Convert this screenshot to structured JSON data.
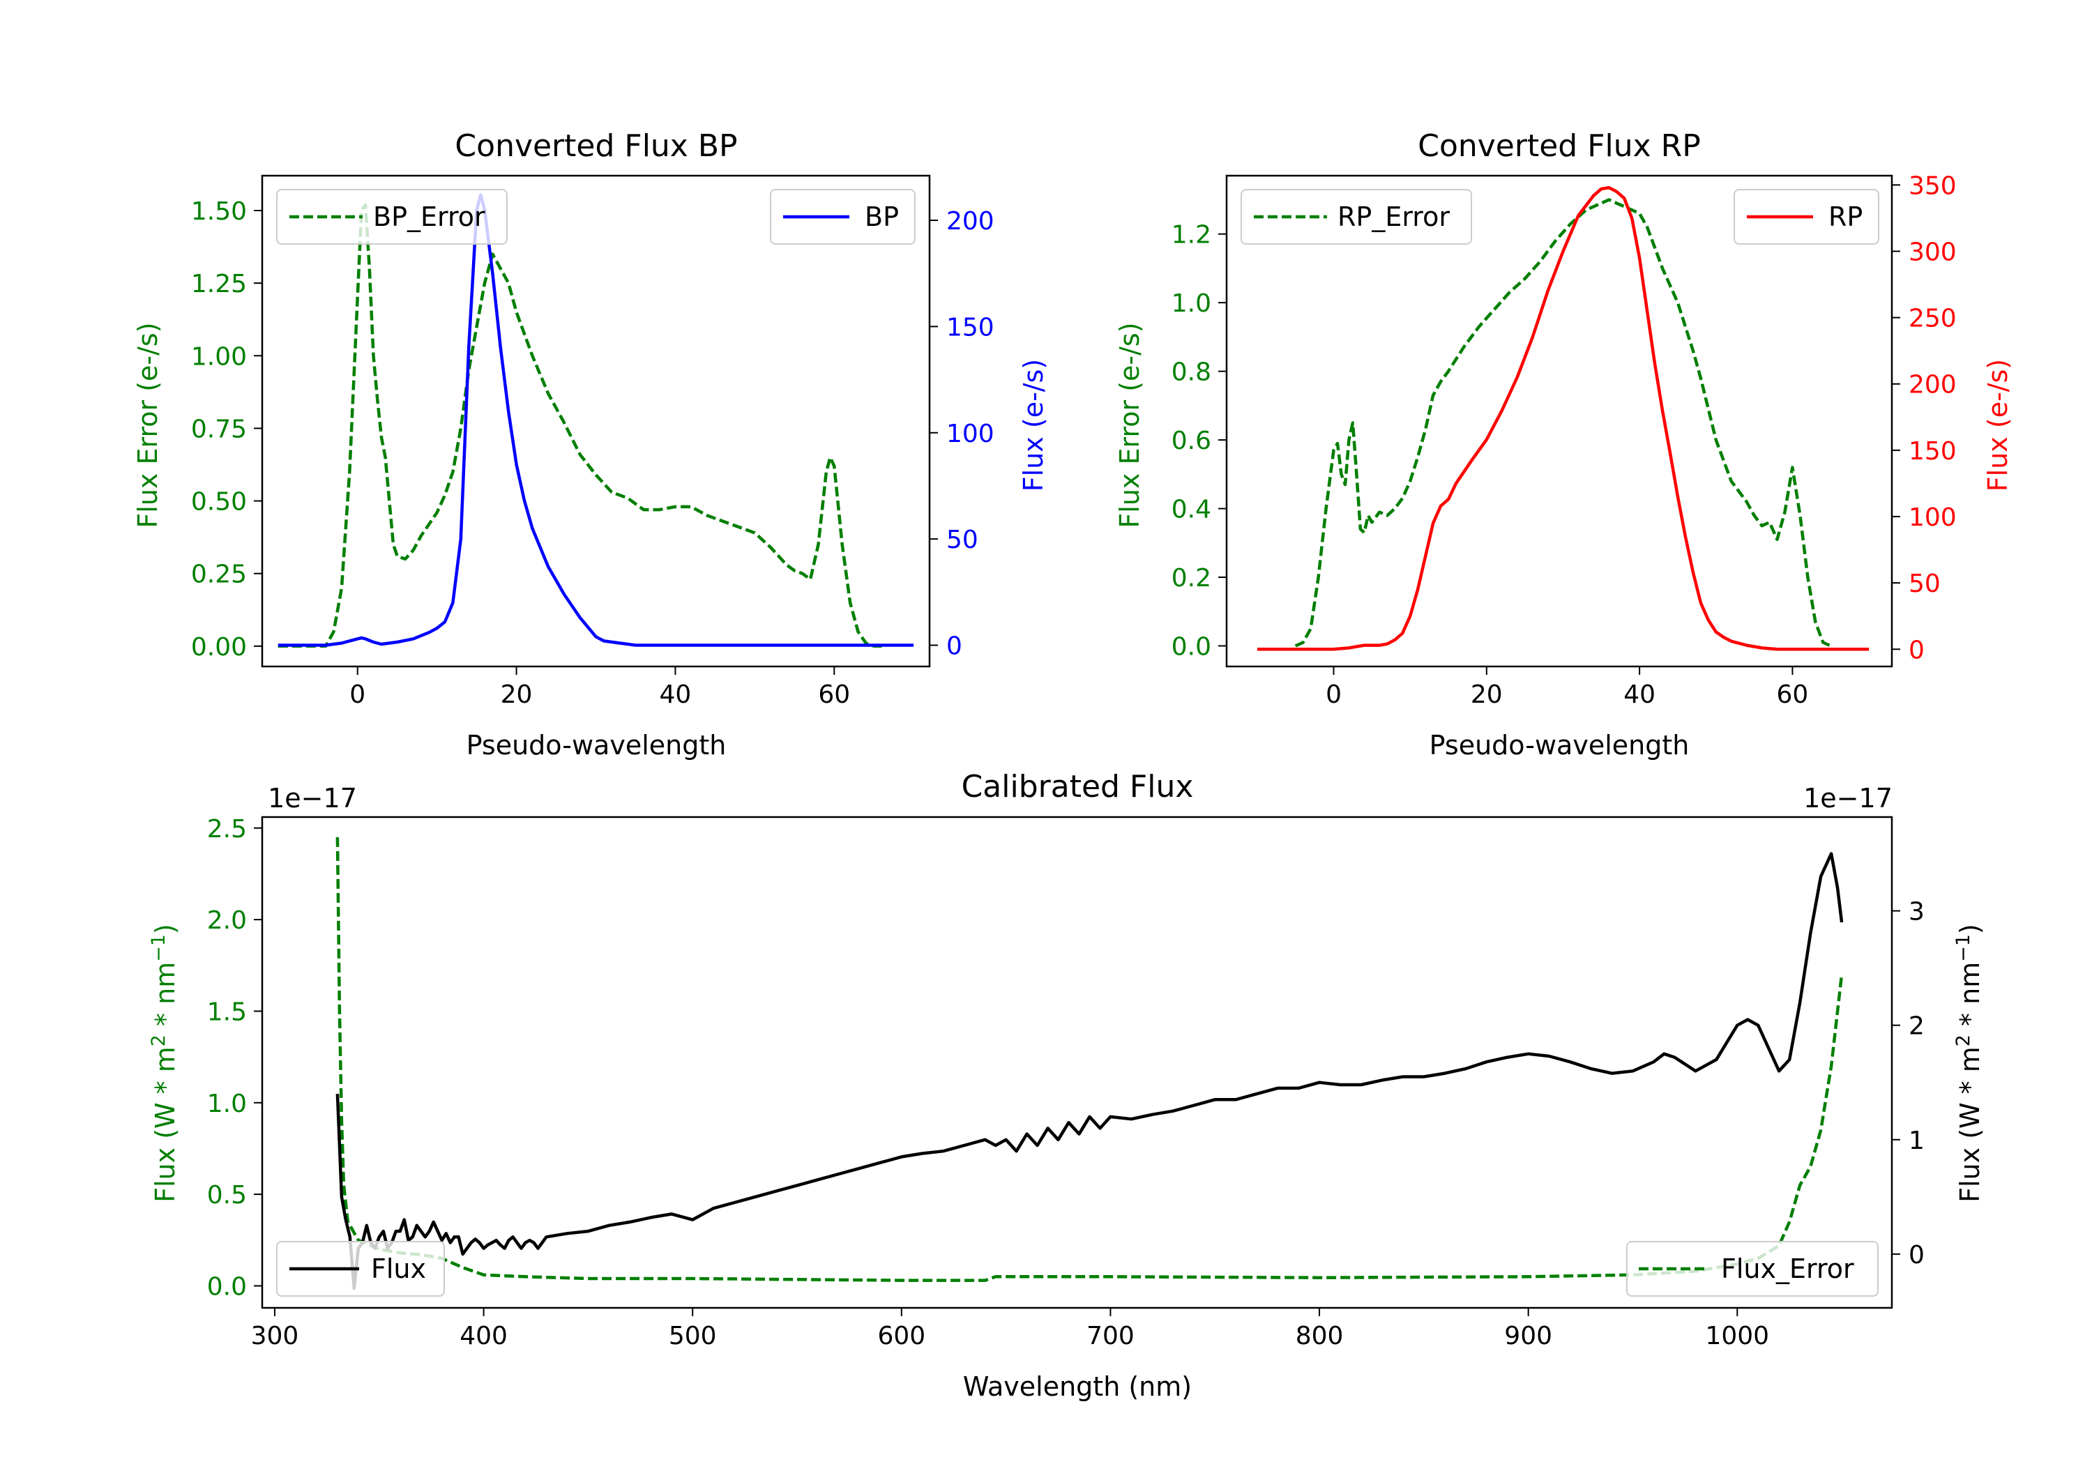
{
  "colors": {
    "bp": "#0000ff",
    "rp": "#ff0000",
    "error": "#007f00",
    "flux": "#000000"
  },
  "chart_data": [
    {
      "id": "bp",
      "type": "line",
      "title": "Converted Flux BP",
      "xlabel": "Pseudo-wavelength",
      "ylabel_left": "Flux Error (e-/s)",
      "ylabel_right": "Flux (e-/s)",
      "xlim": [
        -12,
        72
      ],
      "ylim_left": [
        -0.07,
        1.62
      ],
      "ylim_right": [
        -10,
        221
      ],
      "xticks": [
        0,
        20,
        40,
        60
      ],
      "yticks_left": [
        0,
        0.25,
        0.5,
        0.75,
        1.0,
        1.25,
        1.5
      ],
      "yticks_left_labels": [
        "0.00",
        "0.25",
        "0.50",
        "0.75",
        "1.00",
        "1.25",
        "1.50"
      ],
      "yticks_right": [
        0,
        50,
        100,
        150,
        200
      ],
      "yticks_right_labels": [
        "0",
        "50",
        "100",
        "150",
        "200"
      ],
      "legend_left": "BP_Error",
      "legend_right": "BP",
      "series_error": {
        "name": "BP_Error",
        "x": [
          -10,
          -4,
          -3,
          -2,
          -1,
          0,
          0.5,
          1,
          1.5,
          2,
          2.5,
          3,
          3.5,
          4,
          4.5,
          5,
          6,
          7,
          8,
          9,
          10,
          11,
          12,
          13,
          14,
          15,
          16,
          17,
          18,
          19,
          20,
          22,
          24,
          26,
          28,
          30,
          32,
          34,
          36,
          38,
          40,
          42,
          44,
          46,
          48,
          50,
          52,
          54,
          55,
          56,
          57,
          58,
          59,
          59.5,
          60,
          61,
          62,
          63,
          64,
          65,
          66
        ],
        "values": [
          0,
          0,
          0.05,
          0.2,
          0.6,
          1.2,
          1.5,
          1.52,
          1.3,
          1.0,
          0.85,
          0.72,
          0.65,
          0.5,
          0.35,
          0.31,
          0.3,
          0.33,
          0.38,
          0.42,
          0.46,
          0.52,
          0.6,
          0.75,
          0.95,
          1.1,
          1.25,
          1.35,
          1.3,
          1.25,
          1.15,
          1.0,
          0.87,
          0.77,
          0.66,
          0.59,
          0.53,
          0.51,
          0.47,
          0.47,
          0.48,
          0.48,
          0.45,
          0.43,
          0.41,
          0.39,
          0.34,
          0.28,
          0.26,
          0.25,
          0.23,
          0.35,
          0.6,
          0.65,
          0.62,
          0.35,
          0.15,
          0.05,
          0.01,
          0,
          0
        ]
      },
      "series_flux": {
        "name": "BP",
        "x": [
          -10,
          -4,
          -2,
          0,
          0.5,
          1,
          2,
          3,
          5,
          7,
          9,
          10,
          11,
          12,
          13,
          14,
          15,
          15.5,
          16,
          17,
          18,
          19,
          20,
          21,
          22,
          24,
          26,
          28,
          30,
          31,
          33,
          35,
          37,
          39,
          41,
          43,
          45,
          50,
          55,
          60,
          65,
          70
        ],
        "values": [
          0,
          0,
          1,
          3,
          3.5,
          3,
          1.5,
          0.5,
          1.5,
          3,
          6,
          8,
          11,
          20,
          50,
          140,
          205,
          212,
          205,
          175,
          140,
          110,
          85,
          68,
          55,
          37,
          24,
          13,
          4,
          2,
          1,
          0,
          0,
          0,
          0,
          0,
          0,
          0,
          0,
          0,
          0,
          0
        ]
      }
    },
    {
      "id": "rp",
      "type": "line",
      "title": "Converted Flux RP",
      "xlabel": "Pseudo-wavelength",
      "ylabel_left": "Flux Error (e-/s)",
      "ylabel_right": "Flux (e-/s)",
      "xlim": [
        -14,
        73
      ],
      "ylim_left": [
        -0.06,
        1.37
      ],
      "ylim_right": [
        -13,
        357
      ],
      "xticks": [
        0,
        20,
        40,
        60
      ],
      "yticks_left": [
        0,
        0.2,
        0.4,
        0.6,
        0.8,
        1.0,
        1.2
      ],
      "yticks_left_labels": [
        "0.0",
        "0.2",
        "0.4",
        "0.6",
        "0.8",
        "1.0",
        "1.2"
      ],
      "yticks_right": [
        0,
        50,
        100,
        150,
        200,
        250,
        300,
        350
      ],
      "yticks_right_labels": [
        "0",
        "50",
        "100",
        "150",
        "200",
        "250",
        "300",
        "350"
      ],
      "legend_left": "RP_Error",
      "legend_right": "RP",
      "series_error": {
        "name": "RP_Error",
        "x": [
          -5,
          -4,
          -3,
          -2,
          -1,
          0,
          0.5,
          1,
          1.5,
          2,
          2.5,
          3,
          3.5,
          4,
          4.5,
          5,
          6,
          7,
          8,
          9,
          10,
          11,
          12,
          13,
          14,
          15,
          17,
          19,
          21,
          23,
          25,
          27,
          29,
          31,
          33,
          35,
          36,
          37,
          38,
          39,
          40,
          41,
          42,
          43,
          44,
          45,
          46,
          47,
          48,
          50,
          52,
          54,
          55,
          56,
          57,
          58,
          59,
          60,
          61,
          62,
          63,
          64,
          65
        ],
        "values": [
          0,
          0.01,
          0.05,
          0.2,
          0.4,
          0.57,
          0.59,
          0.5,
          0.47,
          0.6,
          0.65,
          0.5,
          0.34,
          0.33,
          0.38,
          0.36,
          0.39,
          0.38,
          0.4,
          0.43,
          0.48,
          0.55,
          0.63,
          0.73,
          0.77,
          0.8,
          0.87,
          0.93,
          0.98,
          1.03,
          1.07,
          1.12,
          1.18,
          1.23,
          1.27,
          1.29,
          1.3,
          1.29,
          1.28,
          1.27,
          1.26,
          1.22,
          1.16,
          1.1,
          1.05,
          1.0,
          0.93,
          0.86,
          0.78,
          0.6,
          0.48,
          0.42,
          0.38,
          0.35,
          0.36,
          0.31,
          0.39,
          0.52,
          0.38,
          0.2,
          0.07,
          0.01,
          0
        ]
      },
      "series_flux": {
        "name": "RP",
        "x": [
          -10,
          -5,
          0,
          2,
          4,
          6,
          7,
          8,
          9,
          10,
          11,
          12,
          13,
          14,
          15,
          16,
          18,
          20,
          22,
          24,
          26,
          28,
          30,
          32,
          34,
          35,
          36,
          37,
          38,
          39,
          40,
          41,
          42,
          43,
          44,
          45,
          46,
          47,
          48,
          49,
          50,
          51,
          52,
          54,
          56,
          58,
          60,
          62,
          65,
          70
        ],
        "values": [
          0,
          0,
          0,
          1,
          3,
          3,
          4,
          7,
          12,
          25,
          45,
          70,
          95,
          108,
          113,
          125,
          142,
          158,
          180,
          205,
          235,
          270,
          300,
          327,
          342,
          347,
          348,
          345,
          340,
          325,
          295,
          255,
          215,
          180,
          148,
          115,
          85,
          58,
          35,
          22,
          13,
          9,
          6,
          3,
          1,
          0,
          0,
          0,
          0,
          0
        ]
      }
    },
    {
      "id": "cal",
      "type": "line",
      "title": "Calibrated Flux",
      "xlabel": "Wavelength (nm)",
      "ylabel_left": "Flux (W * m^2 * nm^-1)",
      "ylabel_right": "Flux (W * m^2 * nm^-1)",
      "offset_left": "1e−17",
      "offset_right": "1e−17",
      "xlim": [
        294,
        1074
      ],
      "ylim_left": [
        -0.12,
        2.56
      ],
      "ylim_right": [
        -0.47,
        3.82
      ],
      "xticks": [
        300,
        400,
        500,
        600,
        700,
        800,
        900,
        1000
      ],
      "yticks_left": [
        0,
        0.5,
        1.0,
        1.5,
        2.0,
        2.5
      ],
      "yticks_left_labels": [
        "0.0",
        "0.5",
        "1.0",
        "1.5",
        "2.0",
        "2.5"
      ],
      "yticks_right": [
        0,
        1,
        2,
        3
      ],
      "yticks_right_labels": [
        "0",
        "1",
        "2",
        "3"
      ],
      "legend_left": "Flux",
      "legend_right": "Flux_Error",
      "series_error": {
        "name": "Flux_Error",
        "x": [
          330,
          331,
          332,
          333,
          335,
          340,
          350,
          360,
          370,
          380,
          390,
          400,
          420,
          450,
          500,
          550,
          600,
          640,
          645,
          700,
          800,
          900,
          950,
          980,
          1000,
          1010,
          1020,
          1025,
          1030,
          1035,
          1040,
          1045,
          1050
        ],
        "values": [
          2.45,
          1.5,
          0.9,
          0.55,
          0.35,
          0.25,
          0.2,
          0.18,
          0.17,
          0.15,
          0.1,
          0.06,
          0.05,
          0.04,
          0.04,
          0.035,
          0.03,
          0.03,
          0.05,
          0.05,
          0.045,
          0.05,
          0.06,
          0.08,
          0.12,
          0.15,
          0.22,
          0.35,
          0.55,
          0.65,
          0.85,
          1.2,
          1.7
        ]
      },
      "series_flux": {
        "name": "Flux",
        "x": [
          330,
          332,
          334,
          336,
          338,
          340,
          342,
          344,
          346,
          348,
          350,
          352,
          354,
          356,
          358,
          360,
          362,
          364,
          366,
          368,
          370,
          372,
          374,
          376,
          378,
          380,
          382,
          384,
          386,
          388,
          390,
          392,
          394,
          396,
          398,
          400,
          402,
          404,
          406,
          408,
          410,
          412,
          414,
          416,
          418,
          420,
          422,
          424,
          426,
          428,
          430,
          440,
          450,
          460,
          470,
          480,
          490,
          500,
          510,
          520,
          530,
          540,
          550,
          560,
          570,
          580,
          590,
          600,
          610,
          620,
          630,
          640,
          645,
          650,
          655,
          660,
          665,
          670,
          675,
          680,
          685,
          690,
          695,
          700,
          710,
          720,
          730,
          740,
          750,
          760,
          770,
          780,
          790,
          800,
          810,
          820,
          830,
          840,
          850,
          860,
          870,
          880,
          890,
          900,
          910,
          920,
          930,
          940,
          950,
          960,
          965,
          970,
          980,
          990,
          1000,
          1005,
          1010,
          1020,
          1025,
          1030,
          1035,
          1040,
          1045,
          1048,
          1050
        ],
        "values": [
          1.4,
          0.5,
          0.3,
          0.15,
          -0.3,
          0.05,
          0.1,
          0.25,
          0.1,
          0.05,
          0.15,
          0.2,
          0.05,
          0.1,
          0.2,
          0.2,
          0.3,
          0.12,
          0.15,
          0.25,
          0.2,
          0.15,
          0.2,
          0.28,
          0.2,
          0.12,
          0.18,
          0.1,
          0.15,
          0.15,
          0.0,
          0.05,
          0.1,
          0.13,
          0.1,
          0.05,
          0.08,
          0.1,
          0.12,
          0.08,
          0.05,
          0.12,
          0.15,
          0.1,
          0.05,
          0.1,
          0.12,
          0.1,
          0.05,
          0.1,
          0.15,
          0.18,
          0.2,
          0.25,
          0.28,
          0.32,
          0.35,
          0.3,
          0.4,
          0.45,
          0.5,
          0.55,
          0.6,
          0.65,
          0.7,
          0.75,
          0.8,
          0.85,
          0.88,
          0.9,
          0.95,
          1.0,
          0.95,
          1.0,
          0.9,
          1.05,
          0.95,
          1.1,
          1.0,
          1.15,
          1.05,
          1.2,
          1.1,
          1.2,
          1.18,
          1.22,
          1.25,
          1.3,
          1.35,
          1.35,
          1.4,
          1.45,
          1.45,
          1.5,
          1.48,
          1.48,
          1.52,
          1.55,
          1.55,
          1.58,
          1.62,
          1.68,
          1.72,
          1.75,
          1.73,
          1.68,
          1.62,
          1.58,
          1.6,
          1.68,
          1.75,
          1.72,
          1.6,
          1.7,
          2.0,
          2.05,
          2.0,
          1.6,
          1.7,
          2.2,
          2.8,
          3.3,
          3.5,
          3.2,
          2.9
        ]
      }
    }
  ]
}
